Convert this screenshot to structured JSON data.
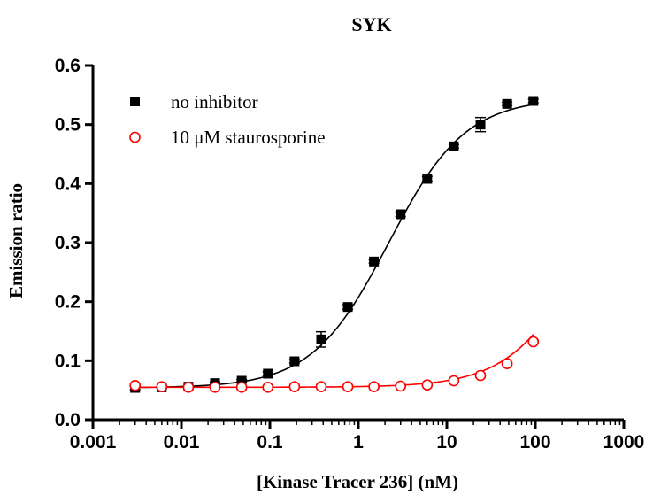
{
  "chart_data": {
    "type": "scatter",
    "title": "SYK",
    "xlabel": "[Kinase Tracer 236] (nM)",
    "ylabel": "Emission ratio",
    "xscale": "log",
    "xlim": [
      0.001,
      1000
    ],
    "ylim": [
      0.0,
      0.6
    ],
    "x_ticks": [
      {
        "value": 0.001,
        "label": "0.001"
      },
      {
        "value": 0.01,
        "label": "0.01"
      },
      {
        "value": 0.1,
        "label": "0.1"
      },
      {
        "value": 1,
        "label": "1"
      },
      {
        "value": 10,
        "label": "10"
      },
      {
        "value": 100,
        "label": "100"
      },
      {
        "value": 1000,
        "label": "1000"
      }
    ],
    "y_ticks": [
      {
        "value": 0.0,
        "label": "0.0"
      },
      {
        "value": 0.1,
        "label": "0.1"
      },
      {
        "value": 0.2,
        "label": "0.2"
      },
      {
        "value": 0.3,
        "label": "0.3"
      },
      {
        "value": 0.4,
        "label": "0.4"
      },
      {
        "value": 0.5,
        "label": "0.5"
      },
      {
        "value": 0.6,
        "label": "0.6"
      }
    ],
    "grid": false,
    "legend": {
      "placement": "top-left"
    },
    "series": [
      {
        "name": "no inhibitor",
        "color": "#000000",
        "marker": "filled-square",
        "x": [
          0.003,
          0.006,
          0.012,
          0.024,
          0.048,
          0.095,
          0.19,
          0.38,
          0.76,
          1.5,
          3,
          6,
          12,
          24,
          48,
          95
        ],
        "y": [
          0.054,
          0.055,
          0.056,
          0.062,
          0.066,
          0.078,
          0.099,
          0.136,
          0.191,
          0.268,
          0.348,
          0.408,
          0.463,
          0.5,
          0.535,
          0.54
        ],
        "error": [
          0.003,
          0.002,
          0.002,
          0.002,
          0.002,
          0.003,
          0.003,
          0.013,
          0.004,
          0.003,
          0.004,
          0.004,
          0.003,
          0.012,
          0.003,
          0.003
        ],
        "fit": {
          "model": "sigmoidal",
          "bottom": 0.054,
          "top": 0.545,
          "ec50": 2.2,
          "hill": 1.0
        }
      },
      {
        "name": "10 μM staurosporine",
        "color": "#ff0000",
        "marker": "open-circle",
        "x": [
          0.003,
          0.006,
          0.012,
          0.024,
          0.048,
          0.095,
          0.19,
          0.38,
          0.76,
          1.5,
          3,
          6,
          12,
          24,
          48,
          95
        ],
        "y": [
          0.058,
          0.056,
          0.055,
          0.055,
          0.055,
          0.055,
          0.056,
          0.056,
          0.056,
          0.056,
          0.057,
          0.059,
          0.066,
          0.075,
          0.095,
          0.132
        ],
        "error": [
          0.002,
          0.002,
          0.002,
          0.002,
          0.002,
          0.002,
          0.002,
          0.002,
          0.002,
          0.002,
          0.002,
          0.002,
          0.003,
          0.003,
          0.003,
          0.003
        ],
        "fit": {
          "model": "sigmoidal",
          "bottom": 0.055,
          "top": 0.54,
          "ec50": 420,
          "hill": 1.0
        }
      }
    ]
  }
}
